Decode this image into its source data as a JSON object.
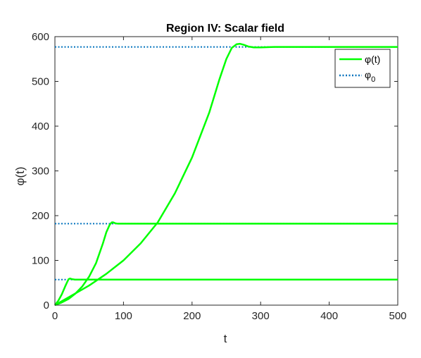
{
  "chart_data": {
    "type": "line",
    "title": "Region IV: Scalar field",
    "xlabel": "t",
    "ylabel": "φ(t)",
    "xlim": [
      0,
      500
    ],
    "ylim": [
      0,
      600
    ],
    "xticks": [
      0,
      100,
      200,
      300,
      400,
      500
    ],
    "yticks": [
      0,
      100,
      200,
      300,
      400,
      500,
      600
    ],
    "grid": false,
    "legend": {
      "placement": "top-right",
      "entries": [
        {
          "label": "φ(t)",
          "style": "solid",
          "color": "#00ff00"
        },
        {
          "label": "φ",
          "subscript": "0",
          "style": "dotted",
          "color": "#0072bd"
        }
      ]
    },
    "reference_lines": [
      {
        "name": "φ_0",
        "y": 57
      },
      {
        "name": "φ_0",
        "y": 182
      },
      {
        "name": "φ_0",
        "y": 577
      }
    ],
    "series": [
      {
        "color": "#00ff00",
        "x": [
          0,
          5,
          10,
          15,
          18,
          20,
          22,
          25,
          30,
          40,
          60,
          80,
          100,
          200,
          300,
          400,
          500
        ],
        "y": [
          0,
          10,
          24,
          42,
          52,
          58,
          59.5,
          58,
          57,
          57,
          57,
          57,
          57,
          57,
          57,
          57,
          57
        ]
      },
      {
        "color": "#00ff00",
        "x": [
          0,
          10,
          20,
          30,
          40,
          50,
          60,
          70,
          75,
          80,
          83,
          85,
          88,
          92,
          100,
          150,
          200,
          300,
          400,
          500
        ],
        "y": [
          0,
          6,
          14,
          26,
          42,
          64,
          94,
          138,
          163,
          180,
          185,
          185,
          183,
          182,
          182,
          182,
          182,
          182,
          182,
          182
        ]
      },
      {
        "color": "#00ff00",
        "x": [
          0,
          25,
          50,
          75,
          100,
          125,
          150,
          175,
          200,
          225,
          240,
          250,
          258,
          265,
          270,
          275,
          282,
          290,
          300,
          320,
          350,
          400,
          450,
          500
        ],
        "y": [
          0,
          22,
          44,
          70,
          100,
          138,
          185,
          250,
          330,
          430,
          505,
          550,
          575,
          583,
          584,
          582,
          578,
          576,
          576,
          577,
          577,
          577,
          577,
          577
        ]
      }
    ]
  }
}
